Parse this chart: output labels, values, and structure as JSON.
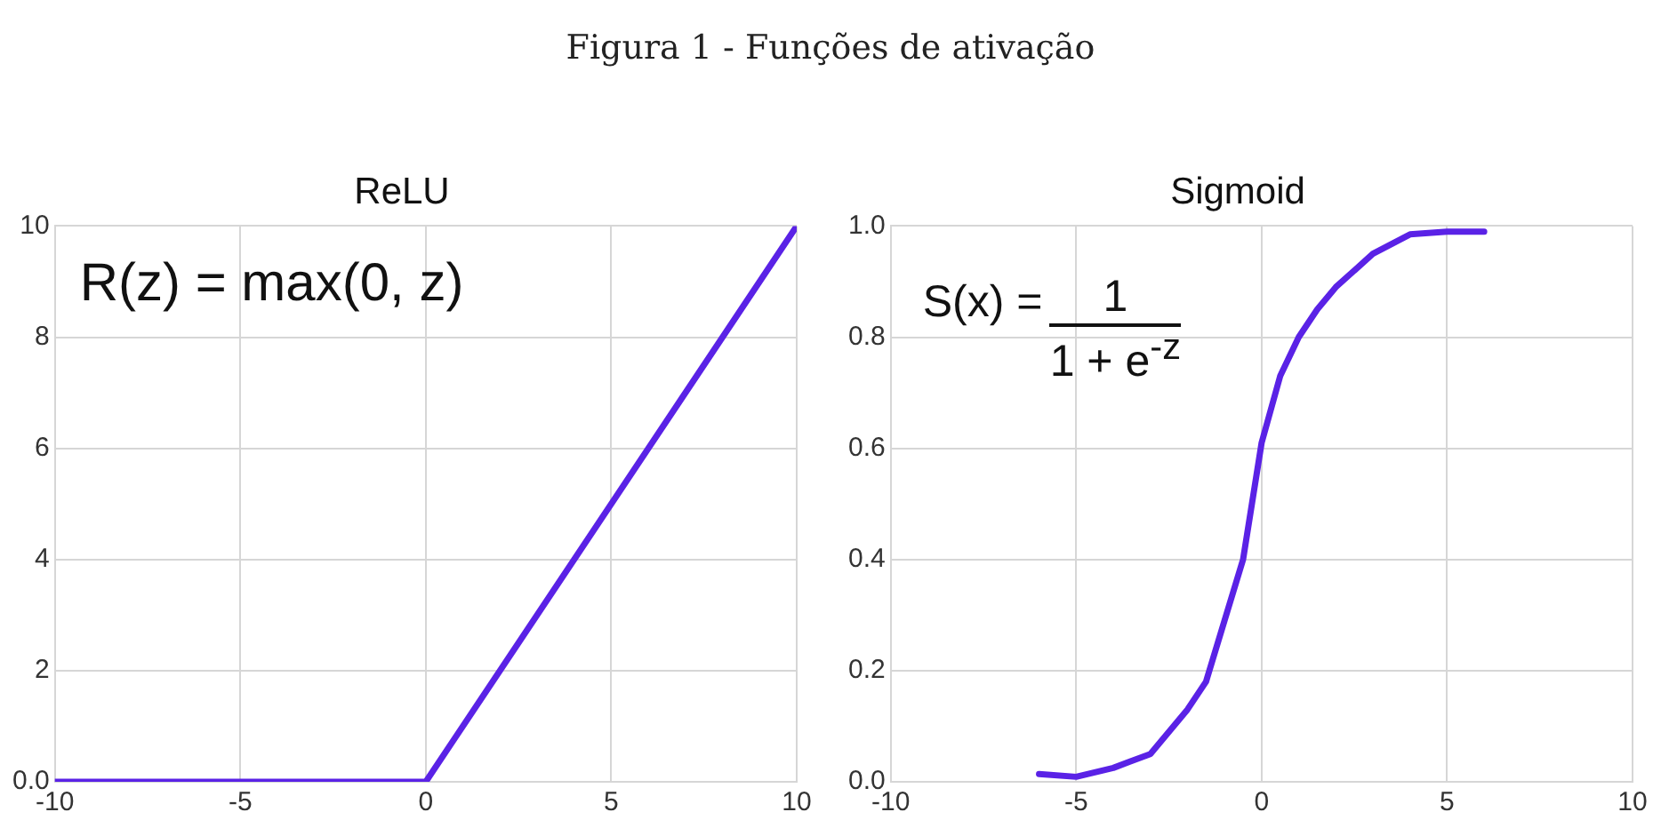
{
  "chart_data": [
    {
      "type": "line",
      "title": "ReLU",
      "annotations": [
        "Figura 1 - Funções de ativação",
        "R(z) = max(0, z)"
      ],
      "series": [
        {
          "color": "#5a22e6",
          "x": [
            -10,
            0,
            10
          ],
          "values": [
            0,
            0,
            10
          ]
        }
      ],
      "xlim": [
        -10,
        10
      ],
      "xticks": [
        -10,
        -5,
        0,
        5,
        10
      ],
      "ylim": [
        0,
        10
      ],
      "yticks": [
        {
          "value": 0,
          "label": "0.0"
        },
        2,
        4,
        6,
        8,
        10
      ],
      "grid": true
    },
    {
      "type": "line",
      "title": "Sigmoid",
      "annotations": [
        "S(x) =",
        "1",
        "1 + e$^{-z}$"
      ],
      "series": [
        {
          "color": "#5a22e6",
          "x": [
            -6,
            -5,
            -4,
            -3,
            -2,
            -1.5,
            -1,
            -0.5,
            0,
            0.5,
            1,
            1.5,
            2,
            3,
            4,
            5,
            6
          ],
          "values": [
            0.014,
            0.009,
            0.025,
            0.05,
            0.13,
            0.18,
            0.29,
            0.4,
            0.61,
            0.73,
            0.8,
            0.85,
            0.89,
            0.95,
            0.985,
            0.99,
            0.99
          ]
        }
      ],
      "xlim": [
        -10,
        10
      ],
      "xticks": [
        -10,
        -5,
        0,
        5,
        10
      ],
      "ylim": [
        0,
        1
      ],
      "yticks": [
        {
          "value": 0,
          "label": "0.0"
        },
        {
          "value": 0.2,
          "label": "0.2"
        },
        {
          "value": 0.4,
          "label": "0.4"
        },
        {
          "value": 0.6,
          "label": "0.6"
        },
        {
          "value": 0.8,
          "label": "0.8"
        },
        {
          "value": 1,
          "label": "1.0"
        }
      ],
      "grid": true
    }
  ]
}
